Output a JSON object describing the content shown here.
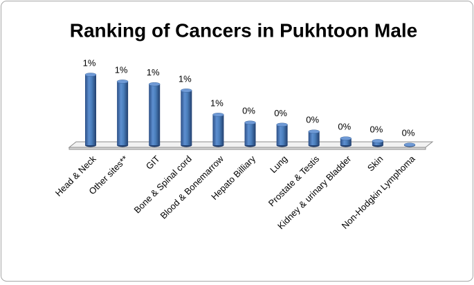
{
  "chart_data": {
    "type": "bar",
    "title": "Ranking of Cancers in Pukhtoon Male",
    "categories": [
      "Head & Neck",
      "Other sites**",
      "GIT",
      "Bone & Spinal cord",
      "Blood & Bonemarrow",
      "Hepato Billiary",
      "Lung",
      "Prostate & Testis",
      "Kidney & urinary Bladder",
      "Skin",
      "Non-Hodgkin Lymphoma"
    ],
    "values": [
      1.34,
      1.21,
      1.16,
      1.04,
      0.58,
      0.43,
      0.39,
      0.26,
      0.13,
      0.08,
      0.01
    ],
    "value_labels": [
      "1%",
      "1%",
      "1%",
      "1%",
      "1%",
      "0%",
      "0%",
      "0%",
      "0%",
      "0%",
      "0%"
    ],
    "color": "#4a7ebb"
  }
}
